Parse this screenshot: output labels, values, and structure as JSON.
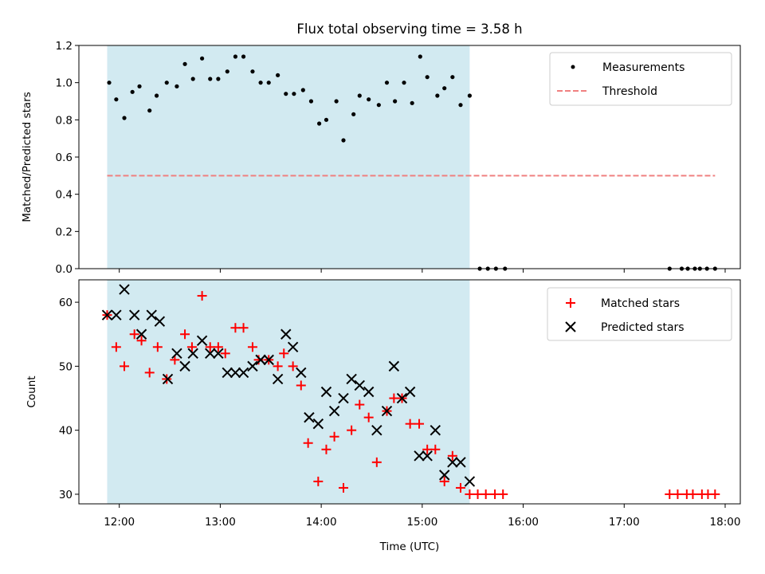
{
  "figure": {
    "title": "Flux total observing time = 3.58 h"
  },
  "chart_data": [
    {
      "type": "scatter",
      "title": "Flux total observing time = 3.58 h",
      "xlabel": "",
      "ylabel": "Matched/Predicted stars",
      "ylim": [
        0,
        1.2
      ],
      "yticks": [
        "0.0",
        "0.2",
        "0.4",
        "0.6",
        "0.8",
        "1.0",
        "1.2"
      ],
      "xlim_hours": [
        11.6,
        18.15
      ],
      "shaded_span_hours": [
        11.88,
        15.47
      ],
      "shade_color": "#add8e6",
      "legend_position": "top-right",
      "series": [
        {
          "name": "Measurements",
          "marker": "dot",
          "color": "#000000",
          "x": [
            11.9,
            11.97,
            12.05,
            12.13,
            12.2,
            12.3,
            12.37,
            12.47,
            12.57,
            12.65,
            12.73,
            12.82,
            12.9,
            12.98,
            13.07,
            13.15,
            13.23,
            13.32,
            13.4,
            13.48,
            13.57,
            13.65,
            13.73,
            13.82,
            13.9,
            13.98,
            14.05,
            14.15,
            14.22,
            14.32,
            14.38,
            14.47,
            14.57,
            14.65,
            14.73,
            14.82,
            14.9,
            14.98,
            15.05,
            15.15,
            15.22,
            15.3,
            15.38,
            15.47,
            15.57,
            15.65,
            15.73,
            15.82,
            17.45,
            17.57,
            17.63,
            17.7,
            17.75,
            17.82,
            17.9
          ],
          "y": [
            1.0,
            0.91,
            0.81,
            0.95,
            0.98,
            0.85,
            0.93,
            1.0,
            0.98,
            1.1,
            1.02,
            1.13,
            1.02,
            1.02,
            1.06,
            1.14,
            1.14,
            1.06,
            1.0,
            1.0,
            1.04,
            0.94,
            0.94,
            0.96,
            0.9,
            0.78,
            0.8,
            0.9,
            0.69,
            0.83,
            0.93,
            0.91,
            0.88,
            1.0,
            0.9,
            1.0,
            0.89,
            1.14,
            1.03,
            0.93,
            0.97,
            1.03,
            0.88,
            0.93,
            0,
            0,
            0,
            0,
            0,
            0,
            0,
            0,
            0,
            0,
            0
          ]
        },
        {
          "name": "Threshold",
          "style": "dashed",
          "color": "#f08080",
          "x": [
            11.88,
            17.9
          ],
          "y": [
            0.5,
            0.5
          ]
        }
      ]
    },
    {
      "type": "scatter",
      "title": "",
      "xlabel": "Time (UTC)",
      "ylabel": "Count",
      "ylim": [
        28.5,
        63.5
      ],
      "yticks": [
        "30",
        "40",
        "50",
        "60"
      ],
      "xlim_hours": [
        11.6,
        18.15
      ],
      "xticks": [
        "12:00",
        "13:00",
        "14:00",
        "15:00",
        "16:00",
        "17:00",
        "18:00"
      ],
      "shaded_span_hours": [
        11.88,
        15.47
      ],
      "legend_position": "top-right",
      "series": [
        {
          "name": "Matched stars",
          "marker": "plus",
          "color": "#ff0000",
          "x": [
            11.88,
            11.97,
            12.05,
            12.15,
            12.22,
            12.3,
            12.38,
            12.47,
            12.55,
            12.65,
            12.72,
            12.82,
            12.9,
            12.98,
            13.05,
            13.15,
            13.23,
            13.32,
            13.38,
            13.48,
            13.57,
            13.63,
            13.72,
            13.8,
            13.87,
            13.97,
            14.05,
            14.13,
            14.22,
            14.3,
            14.38,
            14.47,
            14.55,
            14.65,
            14.72,
            14.8,
            14.88,
            14.97,
            15.05,
            15.13,
            15.22,
            15.3,
            15.38,
            15.47,
            15.55,
            15.63,
            15.72,
            15.8,
            17.45,
            17.53,
            17.62,
            17.68,
            17.77,
            17.83,
            17.9
          ],
          "y": [
            58,
            53,
            50,
            55,
            54,
            49,
            53,
            48,
            51,
            55,
            53,
            61,
            53,
            53,
            52,
            56,
            56,
            53,
            51,
            51,
            50,
            52,
            50,
            47,
            38,
            32,
            37,
            39,
            31,
            40,
            44,
            42,
            35,
            43,
            45,
            45,
            41,
            41,
            37,
            37,
            32,
            36,
            31,
            30,
            30,
            30,
            30,
            30,
            30,
            30,
            30,
            30,
            30,
            30,
            30
          ]
        },
        {
          "name": "Predicted stars",
          "marker": "x",
          "color": "#000000",
          "x": [
            11.88,
            11.97,
            12.05,
            12.15,
            12.22,
            12.32,
            12.4,
            12.48,
            12.57,
            12.65,
            12.73,
            12.82,
            12.9,
            12.98,
            13.07,
            13.15,
            13.23,
            13.32,
            13.4,
            13.48,
            13.57,
            13.65,
            13.72,
            13.8,
            13.88,
            13.97,
            14.05,
            14.13,
            14.22,
            14.3,
            14.38,
            14.47,
            14.55,
            14.65,
            14.72,
            14.8,
            14.88,
            14.97,
            15.05,
            15.13,
            15.22,
            15.3,
            15.38,
            15.47
          ],
          "y": [
            58,
            58,
            62,
            58,
            55,
            58,
            57,
            48,
            52,
            50,
            52,
            54,
            52,
            52,
            49,
            49,
            49,
            50,
            51,
            51,
            48,
            55,
            53,
            49,
            42,
            41,
            46,
            43,
            45,
            48,
            47,
            46,
            40,
            43,
            50,
            45,
            46,
            36,
            36,
            40,
            33,
            35,
            35,
            32
          ]
        }
      ]
    }
  ]
}
